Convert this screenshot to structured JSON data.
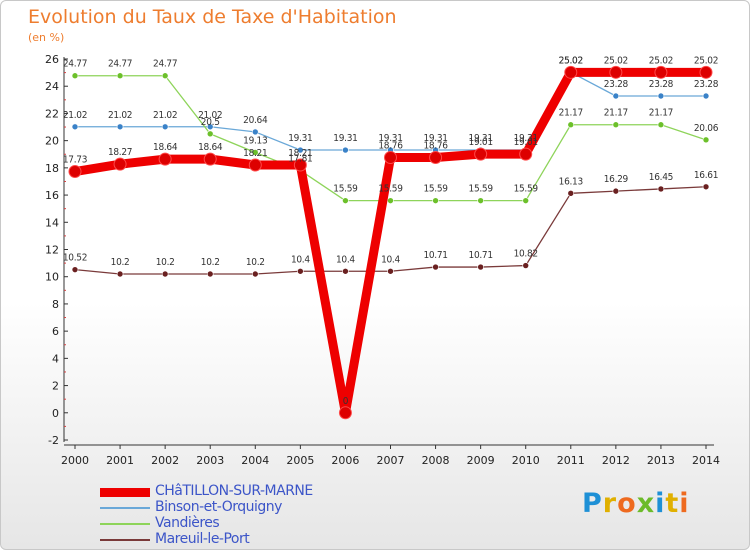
{
  "header": {
    "title": "Evolution du Taux de Taxe d'Habitation",
    "subtitle": "(en %)"
  },
  "brand": {
    "text": "Proxiti",
    "letters": [
      {
        "ch": "P",
        "color": "#1e90d6"
      },
      {
        "ch": "r",
        "color": "#e0b000"
      },
      {
        "ch": "o",
        "color": "#ee6a1f"
      },
      {
        "ch": "x",
        "color": "#6cbb2a"
      },
      {
        "ch": "i",
        "color": "#1e90d6"
      },
      {
        "ch": "t",
        "color": "#e0b000"
      },
      {
        "ch": "i",
        "color": "#ee6a1f"
      }
    ]
  },
  "chart_data": {
    "type": "line",
    "title": "Evolution du Taux de Taxe d'Habitation",
    "subtitle": "(en %)",
    "x": [
      "2000",
      "2001",
      "2002",
      "2003",
      "2004",
      "2005",
      "2006",
      "2007",
      "2008",
      "2009",
      "2010",
      "2011",
      "2012",
      "2013",
      "2014"
    ],
    "ylim": [
      -2,
      26
    ],
    "yticks": [
      -2,
      0,
      2,
      4,
      6,
      8,
      10,
      12,
      14,
      16,
      18,
      20,
      22,
      24,
      26
    ],
    "grid": false,
    "legend_position": "bottom-left",
    "series": [
      {
        "name": "CHâTILLON-SUR-MARNE",
        "color": "#ee0000",
        "marker_color": "#dd0000",
        "emphasis": true,
        "values": [
          17.73,
          18.27,
          18.64,
          18.64,
          18.21,
          18.21,
          0,
          18.76,
          18.76,
          19.01,
          19.01,
          25.02,
          25.02,
          25.02,
          25.02
        ],
        "labels": [
          "17.73",
          "18.27",
          "18.64",
          "18.64",
          "18.21",
          "18.21",
          "0",
          "18.76",
          "18.76",
          "19.01",
          "19.01",
          "25.02",
          "25.02",
          "25.02",
          "25.02"
        ]
      },
      {
        "name": "Binson-et-Orquigny",
        "color": "#6aa8d8",
        "marker_color": "#3a82c8",
        "values": [
          21.02,
          21.02,
          21.02,
          21.02,
          20.64,
          19.31,
          19.31,
          19.31,
          19.31,
          19.31,
          19.31,
          25.02,
          23.28,
          23.28,
          23.28
        ],
        "labels": [
          "21.02",
          "21.02",
          "21.02",
          "21.02",
          "20.64",
          "19.31",
          "19.31",
          "19.31",
          "19.31",
          "19.31",
          "19.31",
          "25.02",
          "23.28",
          "23.28",
          "23.28"
        ]
      },
      {
        "name": "Vandières",
        "color": "#8ed45a",
        "marker_color": "#6cc02a",
        "values": [
          24.77,
          24.77,
          24.77,
          20.5,
          19.13,
          17.81,
          15.59,
          15.59,
          15.59,
          15.59,
          15.59,
          21.17,
          21.17,
          21.17,
          20.06
        ],
        "labels": [
          "24.77",
          "24.77",
          "24.77",
          "20.5",
          "19.13",
          "17.81",
          "15.59",
          "15.59",
          "15.59",
          "15.59",
          "15.59",
          "21.17",
          "21.17",
          "21.17",
          "20.06"
        ]
      },
      {
        "name": "Mareuil-le-Port",
        "color": "#7a3a3a",
        "marker_color": "#6a2020",
        "values": [
          10.52,
          10.2,
          10.2,
          10.2,
          10.2,
          10.4,
          10.4,
          10.4,
          10.71,
          10.71,
          10.82,
          16.13,
          16.29,
          16.45,
          16.61
        ],
        "labels": [
          "10.52",
          "10.2",
          "10.2",
          "10.2",
          "10.2",
          "10.4",
          "10.4",
          "10.4",
          "10.71",
          "10.71",
          "10.82",
          "16.13",
          "16.29",
          "16.45",
          "16.61"
        ]
      }
    ]
  }
}
